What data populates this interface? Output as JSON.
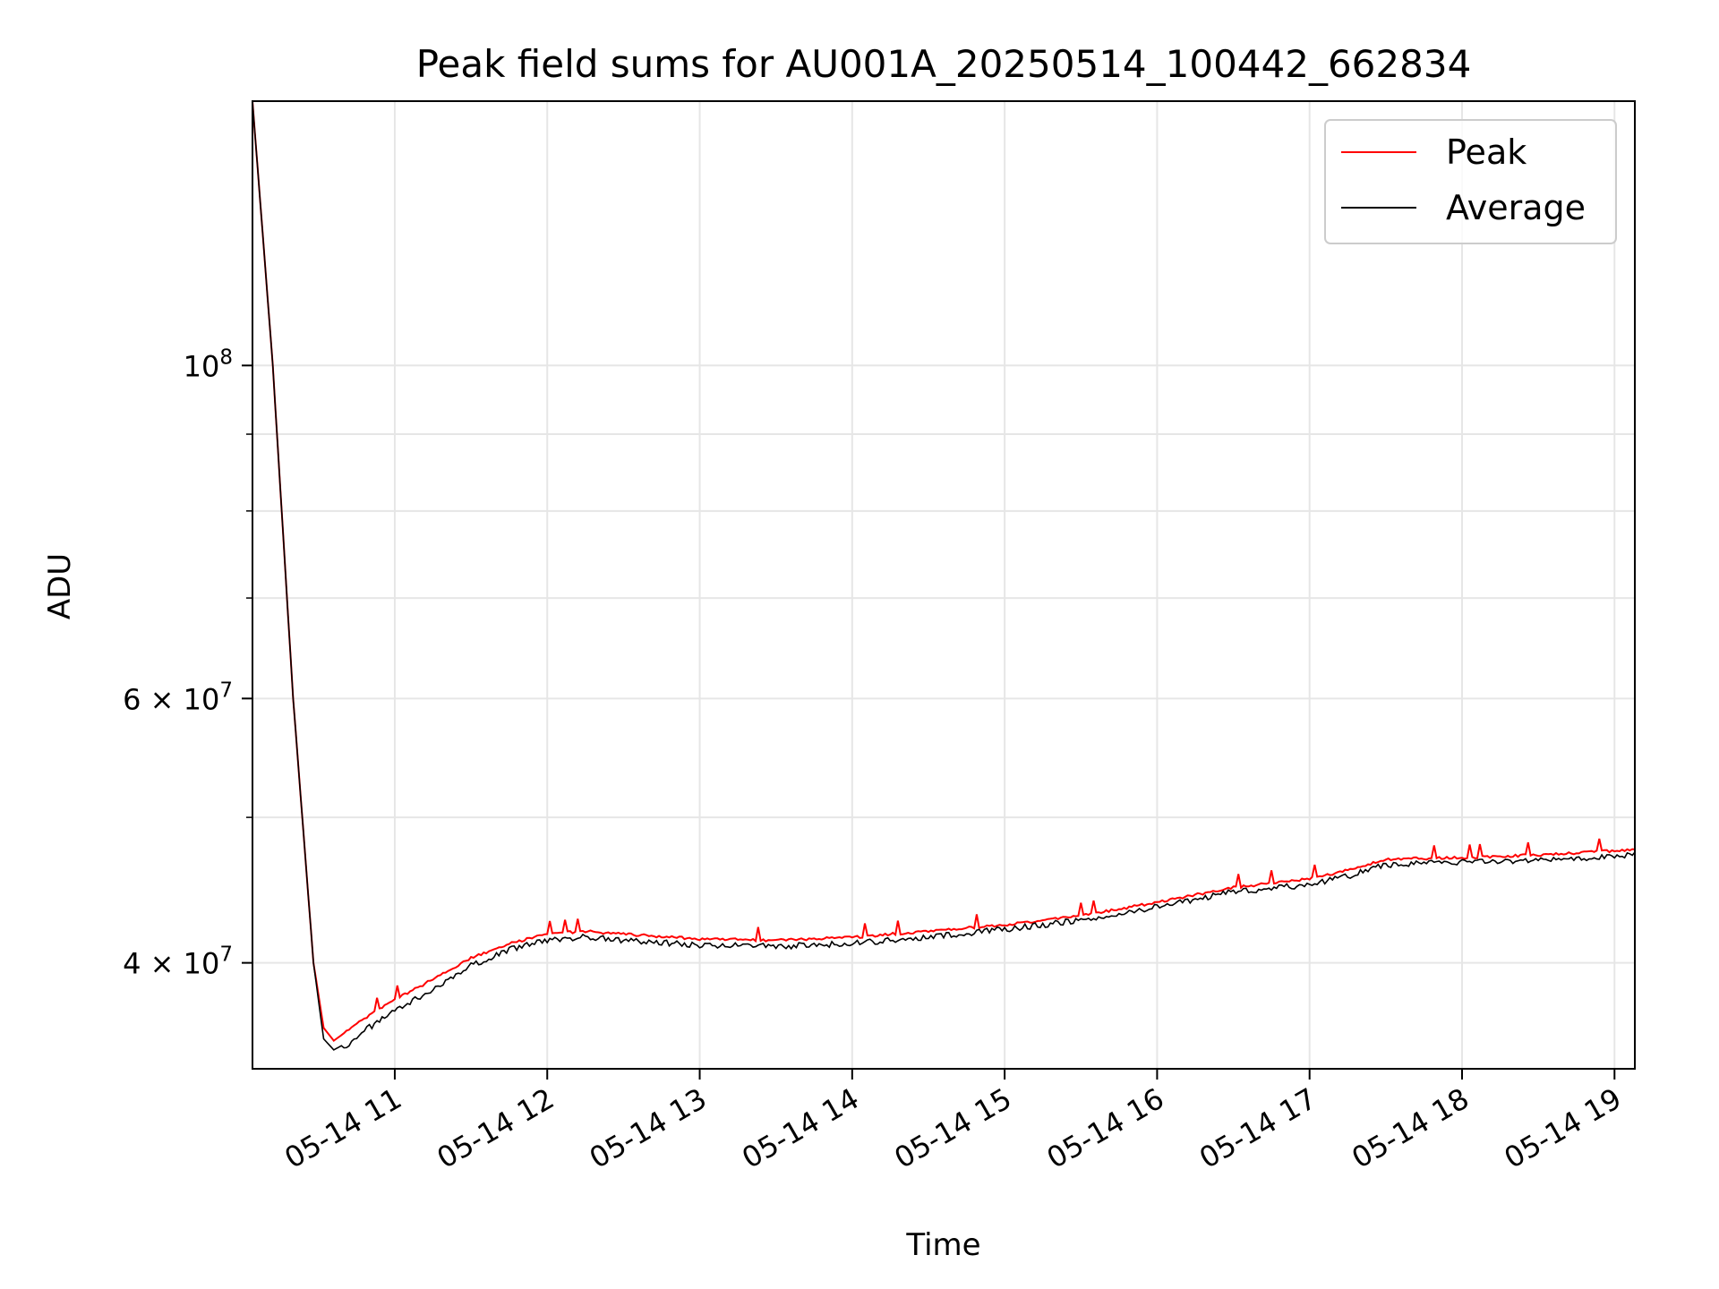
{
  "chart_data": {
    "type": "line",
    "title": "Peak field sums for AU001A_20250514_100442_662834",
    "xlabel": "Time",
    "ylabel": "ADU",
    "xlim": [
      "2025-05-14 10:04",
      "2025-05-14 19:08"
    ],
    "ylim": [
      34000000,
      150000000
    ],
    "yscale": "log",
    "grid": true,
    "legend_position": "top-right",
    "x_ticks": [
      "05-14 11",
      "05-14 12",
      "05-14 13",
      "05-14 14",
      "05-14 15",
      "05-14 16",
      "05-14 17",
      "05-14 18",
      "05-14 19"
    ],
    "y_ticks": [
      {
        "value": 100000000,
        "base": "10",
        "exp": "8",
        "coef": ""
      },
      {
        "value": 60000000,
        "base": "10",
        "exp": "7",
        "coef": "6 × "
      },
      {
        "value": 40000000,
        "base": "10",
        "exp": "7",
        "coef": "4 × "
      }
    ],
    "y_minor_ticks": [
      50000000,
      70000000,
      80000000,
      90000000
    ],
    "x": [
      "2025-05-14 10:04",
      "2025-05-14 10:12",
      "2025-05-14 10:20",
      "2025-05-14 10:28",
      "2025-05-14 10:32",
      "2025-05-14 10:36",
      "2025-05-14 10:40",
      "2025-05-14 10:45",
      "2025-05-14 10:50",
      "2025-05-14 11:00",
      "2025-05-14 11:15",
      "2025-05-14 11:30",
      "2025-05-14 11:45",
      "2025-05-14 12:00",
      "2025-05-14 12:15",
      "2025-05-14 12:30",
      "2025-05-14 13:00",
      "2025-05-14 13:30",
      "2025-05-14 14:00",
      "2025-05-14 14:30",
      "2025-05-14 15:00",
      "2025-05-14 15:30",
      "2025-05-14 16:00",
      "2025-05-14 16:30",
      "2025-05-14 17:00",
      "2025-05-14 17:15",
      "2025-05-14 17:30",
      "2025-05-14 18:00",
      "2025-05-14 18:30",
      "2025-05-14 19:00",
      "2025-05-14 19:08"
    ],
    "series": [
      {
        "name": "Peak",
        "color": "#ff0000",
        "values": [
          150000000,
          100000000,
          60000000,
          40000000,
          36200000,
          35500000,
          35900000,
          36400000,
          36900000,
          37800000,
          39000000,
          40300000,
          41200000,
          41800000,
          42000000,
          41800000,
          41500000,
          41400000,
          41600000,
          42000000,
          42400000,
          43000000,
          43900000,
          44900000,
          45500000,
          46100000,
          46900000,
          47000000,
          47200000,
          47500000,
          47600000
        ]
      },
      {
        "name": "Average",
        "color": "#000000",
        "values": [
          150000000,
          100000000,
          60000000,
          40000000,
          35600000,
          35000000,
          35300000,
          35800000,
          36400000,
          37300000,
          38600000,
          40000000,
          41000000,
          41600000,
          41800000,
          41600000,
          41300000,
          41200000,
          41400000,
          41800000,
          42300000,
          42900000,
          43800000,
          44800000,
          45300000,
          45900000,
          46700000,
          46900000,
          47000000,
          47300000,
          47400000
        ]
      }
    ]
  }
}
